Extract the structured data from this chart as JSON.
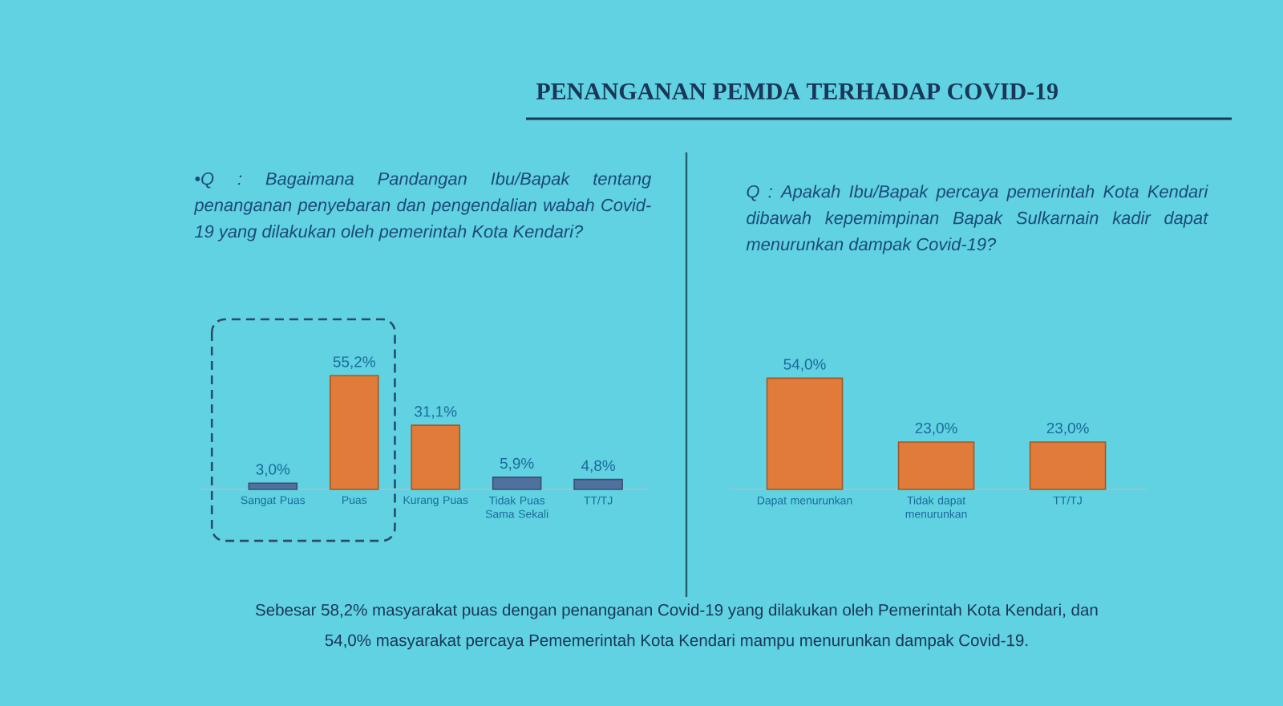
{
  "chart_data": [
    {
      "type": "bar",
      "title": "PENANGANAN PEMDA TERHADAP COVID-19",
      "subtitle": "•Q : Bagaimana Pandangan Ibu/Bapak tentang penanganan penyebaran dan pengendalian wabah Covid-19 yang dilakukan oleh pemerintah Kota Kendari?",
      "categories": [
        "Sangat Puas",
        "Puas",
        "Kurang Puas",
        "Tidak Puas Sama Sekali",
        "TT/TJ"
      ],
      "values": [
        3.0,
        55.2,
        31.1,
        5.9,
        4.8
      ],
      "value_labels": [
        "3,0%",
        "55,2%",
        "31,1%",
        "5,9%",
        "4,8%"
      ],
      "colors": [
        "#50709E",
        "#E07B3A",
        "#E07B3A",
        "#50709E",
        "#50709E"
      ],
      "tick_labels": "x"
    },
    {
      "type": "bar",
      "title": "Q : Apakah Ibu/Bapak percaya pemerintah Kota Kendari dibawah kepemimpinan Bapak Sulkarnain kadir dapat menurunkan dampak Covid-19?",
      "categories": [
        "Dapat menurunkan",
        "Tidak dapat menurunkan",
        "TT/TJ"
      ],
      "values": [
        54.0,
        23.0,
        23.0
      ],
      "value_labels": [
        "54,0%",
        "23,0%",
        "23,0%"
      ],
      "color": "#E07B3A",
      "tick_labels": "x",
      "annotations": [
        "Sebesar 58,2% masyarakat puas dengan penanganan Covid-19 yang dilakukan oleh Pemerintah Kota Kendari, dan 54,0% masyarakat percaya Pememerintah Kota Kendari mampu menurunkan dampak Covid-19."
      ]
    }
  ]
}
